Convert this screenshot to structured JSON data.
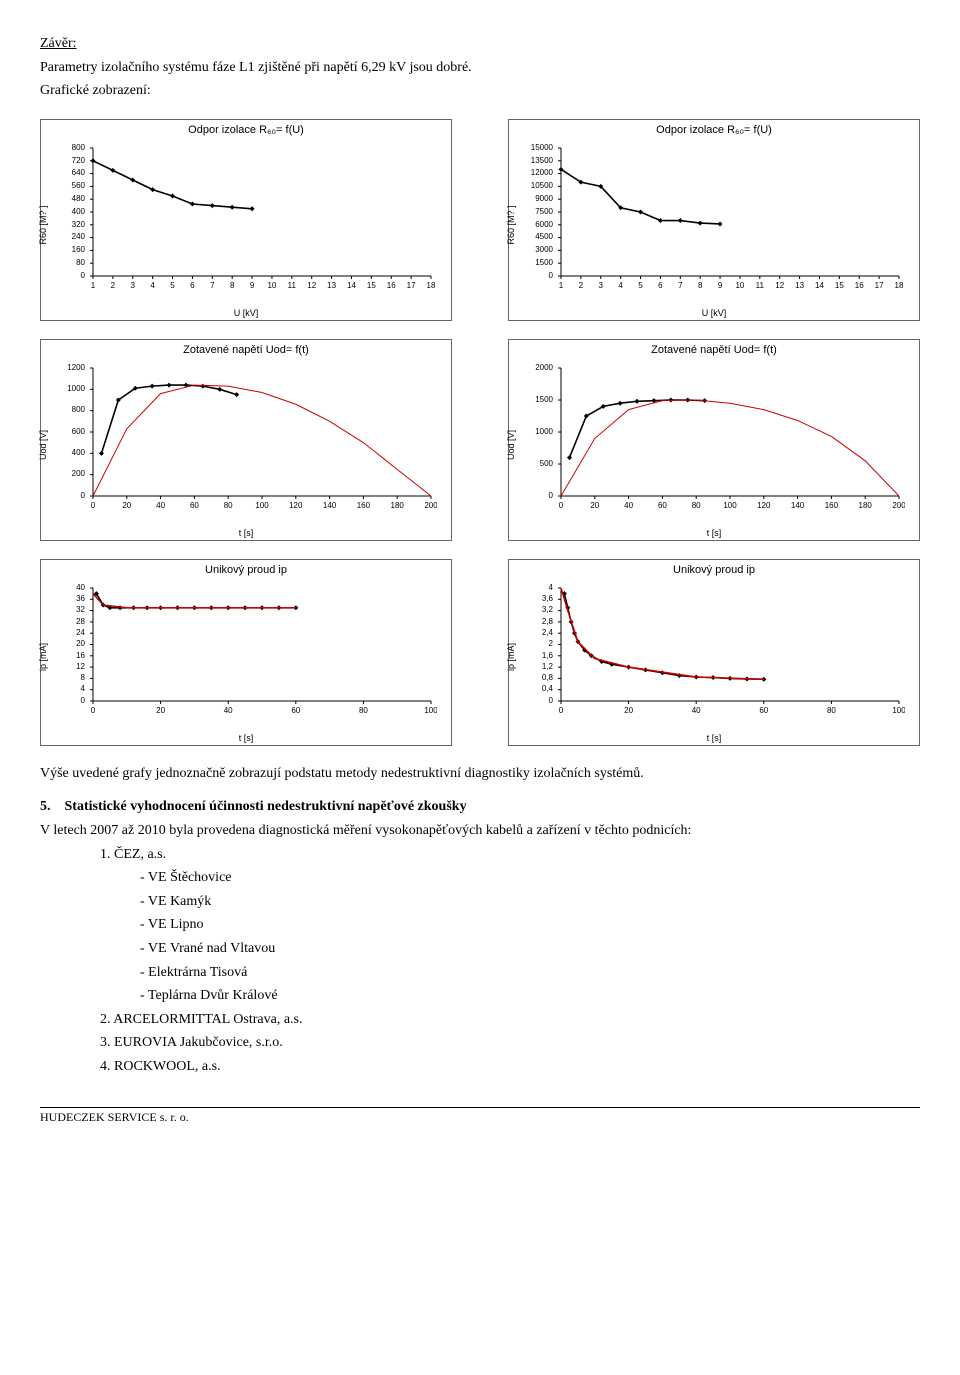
{
  "header": {
    "zaver": "Závěr:",
    "intro": "Parametry izolačního systému fáze L1 zjištěné při napětí 6,29 kV jsou dobré.",
    "graficke": "Grafické zobrazení:"
  },
  "charts": [
    {
      "slot": "c1",
      "title": "Odpor izolace R₆₀= f(U)",
      "ylabel": "R60 [M? ]",
      "xlabel": "U [kV]",
      "xticks": [
        "1",
        "2",
        "3",
        "4",
        "5",
        "6",
        "7",
        "8",
        "9",
        "10",
        "11",
        "12",
        "13",
        "14",
        "15",
        "16",
        "17",
        "18"
      ],
      "yticks": [
        "0",
        "80",
        "160",
        "240",
        "320",
        "400",
        "480",
        "560",
        "640",
        "720",
        "800"
      ],
      "ylim": [
        0,
        800
      ],
      "series": [
        {
          "type": "scatter",
          "color": "#000000",
          "marker": "diamond",
          "points": [
            [
              1,
              720
            ],
            [
              2,
              660
            ],
            [
              3,
              600
            ],
            [
              4,
              540
            ],
            [
              5,
              500
            ],
            [
              6,
              450
            ],
            [
              7,
              440
            ],
            [
              8,
              430
            ],
            [
              9,
              420
            ]
          ]
        }
      ],
      "bg": "#ffffff",
      "axis_color": "#000000",
      "font": 9
    },
    {
      "slot": "c2",
      "title": "Odpor izolace R₆₀= f(U)",
      "ylabel": "R60 [M? ]",
      "xlabel": "U [kV]",
      "xticks": [
        "1",
        "2",
        "3",
        "4",
        "5",
        "6",
        "7",
        "8",
        "9",
        "10",
        "11",
        "12",
        "13",
        "14",
        "15",
        "16",
        "17",
        "18"
      ],
      "yticks": [
        "0",
        "1500",
        "3000",
        "4500",
        "6000",
        "7500",
        "9000",
        "10500",
        "12000",
        "13500",
        "15000"
      ],
      "ylim": [
        0,
        15000
      ],
      "series": [
        {
          "type": "scatter",
          "color": "#000000",
          "marker": "diamond",
          "points": [
            [
              1,
              12500
            ],
            [
              2,
              11000
            ],
            [
              3,
              10500
            ],
            [
              4,
              8000
            ],
            [
              5,
              7500
            ],
            [
              6,
              6500
            ],
            [
              7,
              6500
            ],
            [
              8,
              6200
            ],
            [
              9,
              6100
            ]
          ]
        }
      ],
      "bg": "#ffffff",
      "axis_color": "#000000",
      "font": 9
    },
    {
      "slot": "c3",
      "title": "Zotavené napětí Uod= f(t)",
      "ylabel": "Uod [V]",
      "xlabel": "t [s]",
      "xticks": [
        "0",
        "20",
        "40",
        "60",
        "80",
        "100",
        "120",
        "140",
        "160",
        "180",
        "200"
      ],
      "yticks": [
        "0",
        "200",
        "400",
        "600",
        "800",
        "1000",
        "1200"
      ],
      "ylim": [
        0,
        1200
      ],
      "series": [
        {
          "type": "scatter",
          "color": "#000000",
          "marker": "diamond",
          "points": [
            [
              5,
              400
            ],
            [
              15,
              900
            ],
            [
              25,
              1010
            ],
            [
              35,
              1030
            ],
            [
              45,
              1040
            ],
            [
              55,
              1040
            ],
            [
              65,
              1030
            ],
            [
              75,
              1000
            ],
            [
              85,
              950
            ]
          ]
        },
        {
          "type": "line",
          "color": "#cc0000",
          "width": 1,
          "points": [
            [
              0,
              0
            ],
            [
              20,
              630
            ],
            [
              40,
              960
            ],
            [
              60,
              1040
            ],
            [
              80,
              1030
            ],
            [
              100,
              970
            ],
            [
              120,
              860
            ],
            [
              140,
              700
            ],
            [
              160,
              500
            ],
            [
              180,
              250
            ],
            [
              200,
              0
            ]
          ]
        }
      ],
      "bg": "#ffffff",
      "axis_color": "#000000",
      "font": 9
    },
    {
      "slot": "c4",
      "title": "Zotavené napětí Uod= f(t)",
      "ylabel": "Uod [V]",
      "xlabel": "t [s]",
      "xticks": [
        "0",
        "20",
        "40",
        "60",
        "80",
        "100",
        "120",
        "140",
        "160",
        "180",
        "200"
      ],
      "yticks": [
        "0",
        "500",
        "1000",
        "1500",
        "2000"
      ],
      "ylim": [
        0,
        2000
      ],
      "series": [
        {
          "type": "scatter",
          "color": "#000000",
          "marker": "diamond",
          "points": [
            [
              5,
              600
            ],
            [
              15,
              1250
            ],
            [
              25,
              1400
            ],
            [
              35,
              1450
            ],
            [
              45,
              1480
            ],
            [
              55,
              1490
            ],
            [
              65,
              1500
            ],
            [
              75,
              1500
            ],
            [
              85,
              1490
            ]
          ]
        },
        {
          "type": "line",
          "color": "#cc0000",
          "width": 1,
          "points": [
            [
              0,
              0
            ],
            [
              20,
              900
            ],
            [
              40,
              1350
            ],
            [
              60,
              1490
            ],
            [
              80,
              1500
            ],
            [
              100,
              1450
            ],
            [
              120,
              1350
            ],
            [
              140,
              1180
            ],
            [
              160,
              930
            ],
            [
              180,
              550
            ],
            [
              200,
              0
            ]
          ]
        }
      ],
      "bg": "#ffffff",
      "axis_color": "#000000",
      "font": 9
    },
    {
      "slot": "c5",
      "title": "Unikový proud ip",
      "ylabel": "ip [mA]",
      "xlabel": "t [s]",
      "xticks": [
        "0",
        "20",
        "40",
        "60",
        "80",
        "100"
      ],
      "yticks": [
        "0",
        "4",
        "8",
        "12",
        "16",
        "20",
        "24",
        "28",
        "32",
        "36",
        "40"
      ],
      "ylim": [
        0,
        40
      ],
      "series": [
        {
          "type": "scatter",
          "color": "#000000",
          "marker": "diamond",
          "points": [
            [
              1,
              38
            ],
            [
              3,
              34
            ],
            [
              5,
              33
            ],
            [
              8,
              33
            ],
            [
              12,
              33
            ],
            [
              16,
              33
            ],
            [
              20,
              33
            ],
            [
              25,
              33
            ],
            [
              30,
              33
            ],
            [
              35,
              33
            ],
            [
              40,
              33
            ],
            [
              45,
              33
            ],
            [
              50,
              33
            ],
            [
              55,
              33
            ],
            [
              60,
              33
            ]
          ]
        },
        {
          "type": "line",
          "color": "#cc0000",
          "width": 1.5,
          "points": [
            [
              0,
              38
            ],
            [
              3,
              34
            ],
            [
              10,
              33
            ],
            [
              60,
              33
            ]
          ]
        }
      ],
      "bg": "#ffffff",
      "axis_color": "#000000",
      "font": 9
    },
    {
      "slot": "c6",
      "title": "Unikový proud ip",
      "ylabel": "ip [mA]",
      "xlabel": "t [s]",
      "xticks": [
        "0",
        "20",
        "40",
        "60",
        "80",
        "100"
      ],
      "yticks": [
        "0",
        "0,4",
        "0,8",
        "1,2",
        "1,6",
        "2",
        "2,4",
        "2,8",
        "3,2",
        "3,6",
        "4"
      ],
      "ylim": [
        0,
        4
      ],
      "series": [
        {
          "type": "scatter",
          "color": "#000000",
          "marker": "diamond",
          "points": [
            [
              1,
              3.8
            ],
            [
              2,
              3.3
            ],
            [
              3,
              2.8
            ],
            [
              4,
              2.4
            ],
            [
              5,
              2.1
            ],
            [
              7,
              1.8
            ],
            [
              9,
              1.6
            ],
            [
              12,
              1.4
            ],
            [
              15,
              1.3
            ],
            [
              20,
              1.2
            ],
            [
              25,
              1.1
            ],
            [
              30,
              1.0
            ],
            [
              35,
              0.9
            ],
            [
              40,
              0.85
            ],
            [
              45,
              0.83
            ],
            [
              50,
              0.8
            ],
            [
              55,
              0.78
            ],
            [
              60,
              0.77
            ]
          ]
        },
        {
          "type": "line",
          "color": "#cc0000",
          "width": 1.5,
          "points": [
            [
              0,
              4
            ],
            [
              2,
              3.2
            ],
            [
              5,
              2.1
            ],
            [
              10,
              1.5
            ],
            [
              20,
              1.2
            ],
            [
              40,
              0.85
            ],
            [
              60,
              0.77
            ]
          ]
        }
      ],
      "bg": "#ffffff",
      "axis_color": "#000000",
      "font": 9
    }
  ],
  "body": {
    "vyse": "Výše uvedené grafy jednoznačně zobrazují podstatu metody nedestruktivní diagnostiky izolačních systémů.",
    "sect5num": "5.",
    "sect5title": "Statistické vyhodnocení účinnosti nedestruktivní napěťové zkoušky",
    "sect5p": "V letech 2007 až 2010 byla provedena diagnostická měření vysokonapěťových kabelů a zařízení v těchto podnicích:",
    "list": [
      "1.     ČEZ, a.s.",
      "- VE Štěchovice",
      "- VE Kamýk",
      "- VE Lipno",
      "- VE Vrané nad Vltavou",
      "- Elektrárna Tisová",
      "- Teplárna Dvůr Králové",
      "2.     ARCELORMITTAL Ostrava, a.s.",
      "3.     EUROVIA Jakubčovice, s.r.o.",
      "4.     ROCKWOOL, a.s."
    ],
    "list_indent": [
      "main",
      "sub",
      "sub",
      "sub",
      "sub",
      "sub",
      "sub",
      "main",
      "main",
      "main"
    ]
  },
  "footer": "HUDECZEK SERVICE s. r. o."
}
